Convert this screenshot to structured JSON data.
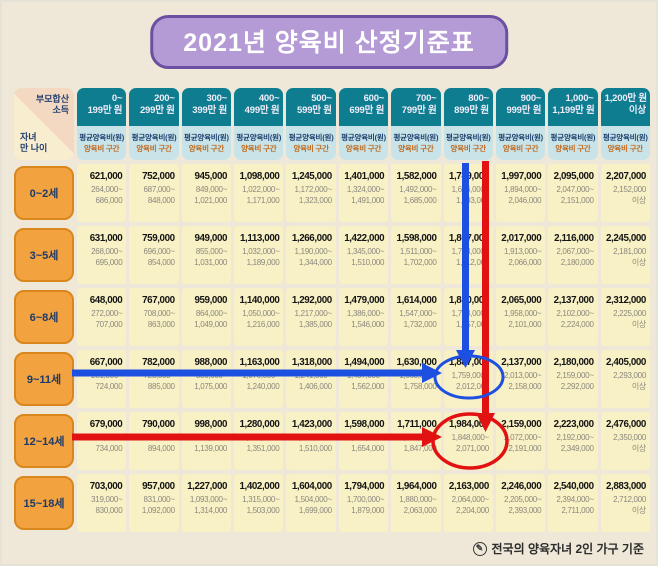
{
  "theme": {
    "canvas_bg": "#efe8d8",
    "title_fill": "#b49bd6",
    "title_border": "#6b4fa1",
    "title_text": "#ffffff",
    "header_teal": "#0d7d8f",
    "header_text": "#f1edfb",
    "subheader_bg": "#c8e4e8",
    "subheader_avg_color": "#1c3f6e",
    "subheader_range_color": "#bf6a1e",
    "corner_top_bg": "#f3d8c2",
    "corner_bottom_bg": "#f9edd0",
    "corner_text": "#23406e",
    "row_label_fill": "#f2a23e",
    "row_label_border": "#d9871d",
    "row_label_text": "#1e3a66",
    "cell_bg": "#f8f1c5",
    "avg_text": "#141414",
    "range_text": "#8b887d",
    "footnote_text": "#2b2b2b"
  },
  "chart_data": {
    "type": "table",
    "title": "2021년 양육비 산정기준표",
    "corner": {
      "top_label": "부모합산\n소득",
      "bottom_label": "자녀\n만 나이"
    },
    "subheader_average": "평균양육비(원)",
    "subheader_range": "양육비 구간",
    "footnote": "전국의 양육자녀 2인 가구 기준",
    "columns": [
      {
        "label": "0~199만 원",
        "line1": "0~",
        "line2": "199만 원"
      },
      {
        "label": "200~299만 원",
        "line1": "200~",
        "line2": "299만 원"
      },
      {
        "label": "300~399만 원",
        "line1": "300~",
        "line2": "399만 원"
      },
      {
        "label": "400~499만 원",
        "line1": "400~",
        "line2": "499만 원"
      },
      {
        "label": "500~599만 원",
        "line1": "500~",
        "line2": "599만 원"
      },
      {
        "label": "600~699만 원",
        "line1": "600~",
        "line2": "699만 원"
      },
      {
        "label": "700~799만 원",
        "line1": "700~",
        "line2": "799만 원"
      },
      {
        "label": "800~899만 원",
        "line1": "800~",
        "line2": "899만 원"
      },
      {
        "label": "900~999만 원",
        "line1": "900~",
        "line2": "999만 원"
      },
      {
        "label": "1,000~1,199만 원",
        "line1": "1,000~",
        "line2": "1,199만 원"
      },
      {
        "label": "1,200만 원 이상",
        "line1": "1,200만 원",
        "line2": "이상"
      }
    ],
    "rows": [
      {
        "label": "0~2세",
        "cells": [
          {
            "avg": "621,000",
            "r1": "264,000~",
            "r2": "686,000"
          },
          {
            "avg": "752,000",
            "r1": "687,000~",
            "r2": "848,000"
          },
          {
            "avg": "945,000",
            "r1": "849,000~",
            "r2": "1,021,000"
          },
          {
            "avg": "1,098,000",
            "r1": "1,022,000~",
            "r2": "1,171,000"
          },
          {
            "avg": "1,245,000",
            "r1": "1,172,000~",
            "r2": "1,323,000"
          },
          {
            "avg": "1,401,000",
            "r1": "1,324,000~",
            "r2": "1,491,000"
          },
          {
            "avg": "1,582,000",
            "r1": "1,492,000~",
            "r2": "1,685,000"
          },
          {
            "avg": "1,789,000",
            "r1": "1,686,000~",
            "r2": "1,893,000"
          },
          {
            "avg": "1,997,000",
            "r1": "1,894,000~",
            "r2": "2,046,000"
          },
          {
            "avg": "2,095,000",
            "r1": "2,047,000~",
            "r2": "2,151,000"
          },
          {
            "avg": "2,207,000",
            "r1": "2,152,000",
            "r2": "이상"
          }
        ]
      },
      {
        "label": "3~5세",
        "cells": [
          {
            "avg": "631,000",
            "r1": "268,000~",
            "r2": "695,000"
          },
          {
            "avg": "759,000",
            "r1": "696,000~",
            "r2": "854,000"
          },
          {
            "avg": "949,000",
            "r1": "855,000~",
            "r2": "1,031,000"
          },
          {
            "avg": "1,113,000",
            "r1": "1,032,000~",
            "r2": "1,189,000"
          },
          {
            "avg": "1,266,000",
            "r1": "1,190,000~",
            "r2": "1,344,000"
          },
          {
            "avg": "1,422,000",
            "r1": "1,345,000~",
            "r2": "1,510,000"
          },
          {
            "avg": "1,598,000",
            "r1": "1,511,000~",
            "r2": "1,702,000"
          },
          {
            "avg": "1,807,000",
            "r1": "1,703,000~",
            "r2": "1,912,000"
          },
          {
            "avg": "2,017,000",
            "r1": "1,913,000~",
            "r2": "2,066,000"
          },
          {
            "avg": "2,116,000",
            "r1": "2,067,000~",
            "r2": "2,180,000"
          },
          {
            "avg": "2,245,000",
            "r1": "2,181,000",
            "r2": "이상"
          }
        ]
      },
      {
        "label": "6~8세",
        "cells": [
          {
            "avg": "648,000",
            "r1": "272,000~",
            "r2": "707,000"
          },
          {
            "avg": "767,000",
            "r1": "708,000~",
            "r2": "863,000"
          },
          {
            "avg": "959,000",
            "r1": "864,000~",
            "r2": "1,049,000"
          },
          {
            "avg": "1,140,000",
            "r1": "1,050,000~",
            "r2": "1,216,000"
          },
          {
            "avg": "1,292,000",
            "r1": "1,217,000~",
            "r2": "1,385,000"
          },
          {
            "avg": "1,479,000",
            "r1": "1,386,000~",
            "r2": "1,546,000"
          },
          {
            "avg": "1,614,000",
            "r1": "1,547,000~",
            "r2": "1,732,000"
          },
          {
            "avg": "1,850,000",
            "r1": "1,733,000~",
            "r2": "1,957,000"
          },
          {
            "avg": "2,065,000",
            "r1": "1,958,000~",
            "r2": "2,101,000"
          },
          {
            "avg": "2,137,000",
            "r1": "2,102,000~",
            "r2": "2,224,000"
          },
          {
            "avg": "2,312,000",
            "r1": "2,225,000",
            "r2": "이상"
          }
        ]
      },
      {
        "label": "9~11세",
        "cells": [
          {
            "avg": "667,000",
            "r1": "281,000~",
            "r2": "724,000"
          },
          {
            "avg": "782,000",
            "r1": "725,000~",
            "r2": "885,000"
          },
          {
            "avg": "988,000",
            "r1": "886,000~",
            "r2": "1,075,000"
          },
          {
            "avg": "1,163,000",
            "r1": "1,076,000~",
            "r2": "1,240,000"
          },
          {
            "avg": "1,318,000",
            "r1": "1,241,000~",
            "r2": "1,406,000"
          },
          {
            "avg": "1,494,000",
            "r1": "1,407,000~",
            "r2": "1,562,000"
          },
          {
            "avg": "1,630,000",
            "r1": "1,563,000~",
            "r2": "1,758,000"
          },
          {
            "avg": "1,887,000",
            "r1": "1,759,000~",
            "r2": "2,012,000"
          },
          {
            "avg": "2,137,000",
            "r1": "2,013,000~",
            "r2": "2,158,000"
          },
          {
            "avg": "2,180,000",
            "r1": "2,159,000~",
            "r2": "2,292,000"
          },
          {
            "avg": "2,405,000",
            "r1": "2,293,000",
            "r2": "이상"
          }
        ]
      },
      {
        "label": "12~14세",
        "cells": [
          {
            "avg": "679,000",
            "r1": "295,000~",
            "r2": "734,000"
          },
          {
            "avg": "790,000",
            "r1": "735,000~",
            "r2": "894,000"
          },
          {
            "avg": "998,000",
            "r1": "895,000~",
            "r2": "1,139,000"
          },
          {
            "avg": "1,280,000",
            "r1": "1,140,000~",
            "r2": "1,351,000"
          },
          {
            "avg": "1,423,000",
            "r1": "1,352,000~",
            "r2": "1,510,000"
          },
          {
            "avg": "1,598,000",
            "r1": "1,511,000~",
            "r2": "1,654,000"
          },
          {
            "avg": "1,711,000",
            "r1": "1,655,000~",
            "r2": "1,847,000"
          },
          {
            "avg": "1,984,000",
            "r1": "1,848,000~",
            "r2": "2,071,000"
          },
          {
            "avg": "2,159,000",
            "r1": "2,072,000~",
            "r2": "2,191,000"
          },
          {
            "avg": "2,223,000",
            "r1": "2,192,000~",
            "r2": "2,349,000"
          },
          {
            "avg": "2,476,000",
            "r1": "2,350,000",
            "r2": "이상"
          }
        ]
      },
      {
        "label": "15~18세",
        "cells": [
          {
            "avg": "703,000",
            "r1": "319,000~",
            "r2": "830,000"
          },
          {
            "avg": "957,000",
            "r1": "831,000~",
            "r2": "1,092,000"
          },
          {
            "avg": "1,227,000",
            "r1": "1,093,000~",
            "r2": "1,314,000"
          },
          {
            "avg": "1,402,000",
            "r1": "1,315,000~",
            "r2": "1,503,000"
          },
          {
            "avg": "1,604,000",
            "r1": "1,504,000~",
            "r2": "1,699,000"
          },
          {
            "avg": "1,794,000",
            "r1": "1,700,000~",
            "r2": "1,879,000"
          },
          {
            "avg": "1,964,000",
            "r1": "1,880,000~",
            "r2": "2,063,000"
          },
          {
            "avg": "2,163,000",
            "r1": "2,064,000~",
            "r2": "2,204,000"
          },
          {
            "avg": "2,246,000",
            "r1": "2,205,000~",
            "r2": "2,393,000"
          },
          {
            "avg": "2,540,000",
            "r1": "2,394,000~",
            "r2": "2,711,000"
          },
          {
            "avg": "2,883,000",
            "r1": "2,712,000",
            "r2": "이상"
          }
        ]
      }
    ],
    "annotations": {
      "blue": {
        "color": "#1d4fe0",
        "shapes": [
          "vertical-arrow-down",
          "horizontal-arrow-right",
          "ellipse-highlight"
        ],
        "row": "9~11세",
        "column": "800~899만 원",
        "highlighted_value": "1,887,000"
      },
      "red": {
        "color": "#e31212",
        "shapes": [
          "vertical-arrow-down",
          "horizontal-arrow-right",
          "ellipse-highlight"
        ],
        "row": "12~14세",
        "column": "800~899만 원",
        "highlighted_value": "1,984,000"
      }
    }
  }
}
